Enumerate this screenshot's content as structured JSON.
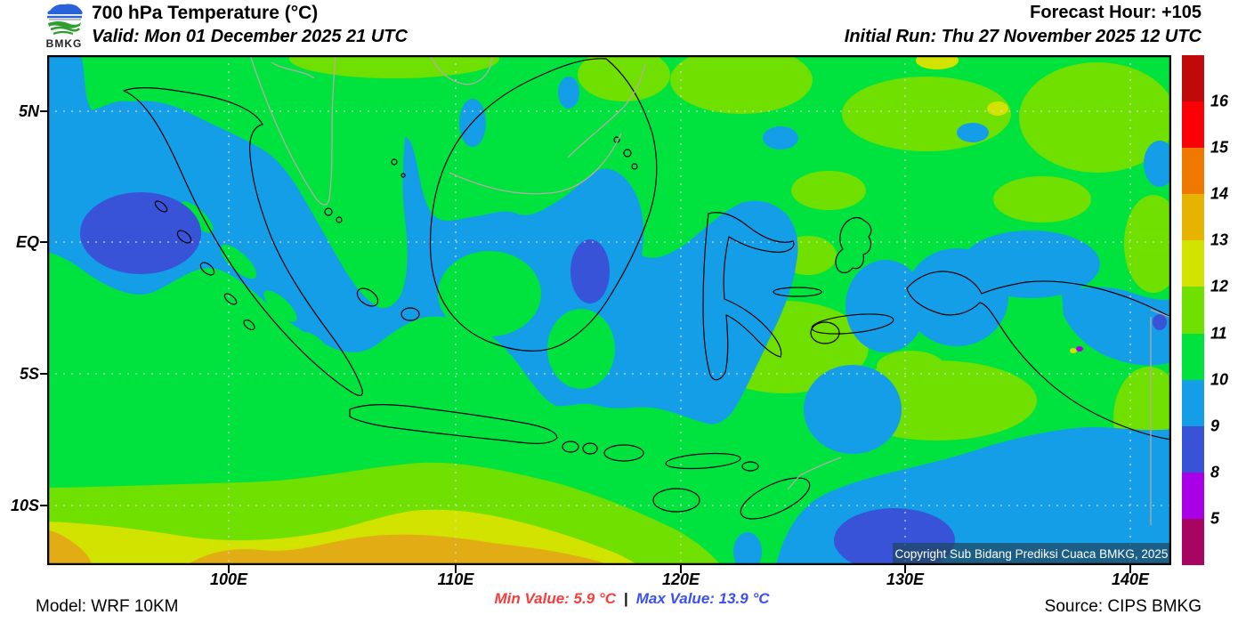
{
  "header": {
    "logo_text": "BMKG",
    "title": "700 hPa Temperature (°C)",
    "valid_label": "Valid: Mon 01 December 2025 21 UTC",
    "forecast_hour_label": "Forecast Hour: +105",
    "initial_run_label": "Initial Run: Thu 27 November 2025 12 UTC"
  },
  "map": {
    "lat_ticks": [
      "5N",
      "EQ",
      "5S",
      "10S"
    ],
    "lon_ticks": [
      "100E",
      "110E",
      "120E",
      "130E",
      "140E"
    ],
    "copyright": "Copyright Sub Bidang Prediksi Cuaca BMKG, 2025"
  },
  "colorbar": {
    "labels": [
      "16",
      "15",
      "14",
      "13",
      "12",
      "11",
      "10",
      "9",
      "8",
      "5"
    ],
    "colors": [
      "#C00A0A",
      "#FB0007",
      "#F07800",
      "#E6B400",
      "#D2E300",
      "#70E000",
      "#00E33E",
      "#149EE8",
      "#3853D8",
      "#AA00E8",
      "#A80563"
    ]
  },
  "footer": {
    "model_label": "Model: WRF 10KM",
    "min_value_label": "Min Value: 5.9 °C",
    "separator": "|",
    "max_value_label": "Max Value: 13.9 °C",
    "source_label": "Source: CIPS BMKG"
  },
  "chart_data": {
    "type": "heatmap",
    "title": "700 hPa Temperature (°C)",
    "valid_time": "Mon 01 December 2025 21 UTC",
    "initial_run": "Thu 27 November 2025 12 UTC",
    "forecast_hour": "+105",
    "model": "WRF 10KM",
    "source": "CIPS BMKG",
    "min_value_c": 5.9,
    "max_value_c": 13.9,
    "lat_ticks": [
      "5N",
      "EQ",
      "5S",
      "10S"
    ],
    "lon_ticks": [
      "100E",
      "110E",
      "120E",
      "130E",
      "140E"
    ],
    "legend_position": "right",
    "scale_boundaries_c": [
      16,
      15,
      14,
      13,
      12,
      11,
      10,
      9,
      8,
      5
    ],
    "scale_colors_top_to_bottom": [
      "#C00A0A",
      "#FB0007",
      "#F07800",
      "#E6B400",
      "#D2E300",
      "#70E000",
      "#00E33E",
      "#149EE8",
      "#3853D8",
      "#AA00E8",
      "#A80563"
    ],
    "field_summary": "9-10°C air over Sumatra, the Malacca Strait, Borneo and the Java Sea with 8-9°C pockets west of Sumatra, over southeast Borneo and the Arafura Sea; 10-11°C over most eastern seas with 11-12°C patches; 11-13°C ribbon south of Java reaching 13-14°C in the far southwest"
  }
}
